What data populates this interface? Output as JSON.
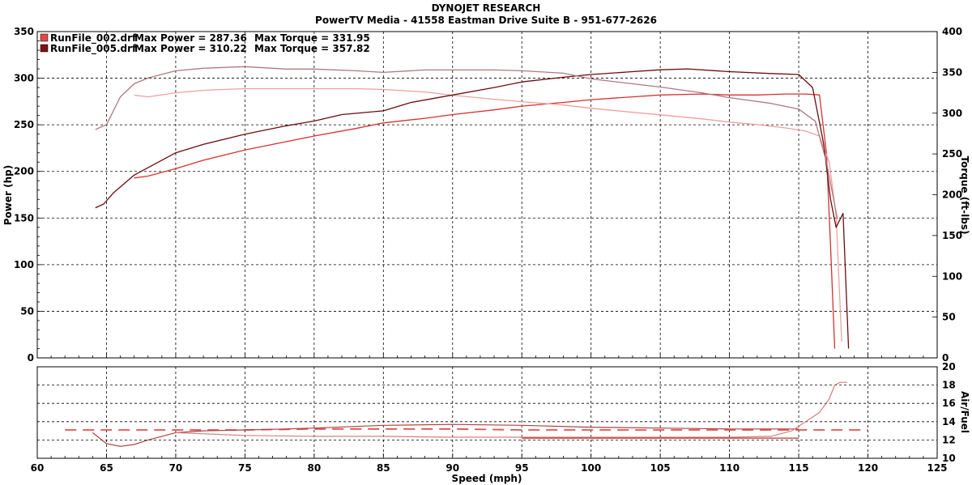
{
  "header": {
    "title": "DYNOJET RESEARCH",
    "subtitle": "PowerTV Media - 41558 Eastman Drive Suite B - 951-677-2626"
  },
  "legend": [
    {
      "file": "RunFile_002.drf",
      "max_power": "Max Power = 287.36",
      "max_torque": "Max Torque = 331.95",
      "color": "#e04848"
    },
    {
      "file": "RunFile_005.drf",
      "max_power": "Max Power = 310.22",
      "max_torque": "Max Torque = 357.82",
      "color": "#7a1418"
    }
  ],
  "chart_data": [
    {
      "type": "line",
      "title": "",
      "xlabel": "Speed (mph)",
      "ylabel": "Power (hp)",
      "y2label": "Torque (ft-lbs)",
      "xlim": [
        60,
        125
      ],
      "ylim": [
        0,
        350
      ],
      "y2lim": [
        0,
        400
      ],
      "xticks": [
        60,
        65,
        70,
        75,
        80,
        85,
        90,
        95,
        100,
        105,
        110,
        115,
        120,
        125
      ],
      "yticks": [
        0,
        50,
        100,
        150,
        200,
        250,
        300,
        350
      ],
      "y2ticks": [
        0,
        50,
        100,
        150,
        200,
        250,
        300,
        350,
        400
      ],
      "grid": true,
      "series": [
        {
          "name": "RunFile_002.drf",
          "measure": "Power (hp)",
          "axis": "left",
          "color": "#d83030",
          "x": [
            67,
            68,
            70,
            72,
            75,
            78,
            80,
            83,
            85,
            88,
            90,
            93,
            95,
            98,
            100,
            103,
            105,
            108,
            110,
            112,
            114,
            115.5,
            116.5,
            117,
            117.3,
            117.6
          ],
          "y": [
            193,
            195,
            203,
            212,
            223,
            232,
            238,
            246,
            252,
            257,
            261,
            266,
            270,
            274,
            277,
            280,
            282,
            283,
            282,
            282,
            283,
            283,
            282,
            220,
            120,
            10
          ]
        },
        {
          "name": "RunFile_002.drf",
          "measure": "Torque (ft-lbs)",
          "axis": "right",
          "color": "#f0a0a0",
          "x": [
            67,
            68,
            70,
            72,
            75,
            78,
            80,
            83,
            85,
            88,
            90,
            93,
            95,
            98,
            100,
            103,
            105,
            108,
            110,
            112,
            114,
            115.5,
            116.5,
            117.2,
            117.7,
            118.1
          ],
          "y": [
            322,
            320,
            325,
            328,
            330,
            330,
            330,
            330,
            329,
            326,
            322,
            317,
            314,
            310,
            306,
            301,
            298,
            293,
            289,
            286,
            282,
            278,
            272,
            240,
            175,
            20
          ]
        },
        {
          "name": "RunFile_005.drf",
          "measure": "Power (hp)",
          "axis": "left",
          "color": "#6a0c10",
          "x": [
            64.2,
            64.8,
            65.5,
            67,
            70,
            72,
            75,
            78,
            80,
            82,
            85,
            87,
            90,
            93,
            95,
            98,
            100,
            103,
            105,
            107,
            110,
            113,
            115,
            116,
            116.8,
            117.3,
            117.7,
            118.2,
            118.6
          ],
          "y": [
            161,
            165,
            177,
            196,
            220,
            229,
            240,
            249,
            254,
            261,
            265,
            274,
            282,
            290,
            296,
            301,
            304,
            307,
            309,
            310,
            307,
            305,
            304,
            290,
            230,
            170,
            140,
            155,
            10
          ]
        },
        {
          "name": "RunFile_005.drf",
          "measure": "Torque (ft-lbs)",
          "axis": "right",
          "color": "#b07880",
          "x": [
            64.2,
            65,
            66,
            67,
            68,
            70,
            72,
            75,
            78,
            80,
            83,
            85,
            88,
            90,
            93,
            95,
            98,
            100,
            103,
            105,
            108,
            110,
            113,
            115,
            116.2,
            117,
            117.8
          ],
          "y": [
            280,
            286,
            320,
            336,
            343,
            352,
            355,
            357,
            354,
            354,
            352,
            350,
            353,
            353,
            353,
            352,
            349,
            342,
            336,
            332,
            325,
            319,
            312,
            305,
            290,
            240,
            170
          ]
        }
      ]
    },
    {
      "type": "line",
      "title": "",
      "xlabel": "Speed (mph)",
      "ylabel": "Air/Fuel",
      "xlim": [
        60,
        125
      ],
      "ylim": [
        10,
        20
      ],
      "yticks": [
        10,
        12,
        14,
        16,
        18,
        20
      ],
      "grid": true,
      "series": [
        {
          "name": "RunFile_002.drf",
          "measure": "Air/Fuel",
          "color": "#e05050",
          "dashed": true,
          "x": [
            62,
            70,
            75,
            80,
            85,
            90,
            95,
            100,
            105,
            110,
            115,
            120
          ],
          "y": [
            13.1,
            13.1,
            13.1,
            13.2,
            13.2,
            13.2,
            13.1,
            13.1,
            13.1,
            13.1,
            13.1,
            13.1
          ]
        },
        {
          "name": "RunFile_005.drf",
          "measure": "Air/Fuel",
          "color": "#b04040",
          "dashed": false,
          "x": [
            64,
            65,
            66,
            67,
            68,
            70,
            72,
            75,
            78,
            80,
            85,
            90,
            95,
            100,
            105,
            110,
            113,
            115
          ],
          "y": [
            12.8,
            11.6,
            11.3,
            11.5,
            12.0,
            12.8,
            13.0,
            13.1,
            13.2,
            13.3,
            13.6,
            13.7,
            13.6,
            13.4,
            13.3,
            13.2,
            13.2,
            13.2
          ]
        },
        {
          "name": "RunFile_005.drf",
          "measure": "Air/Fuel",
          "color": "#d08080",
          "dashed": false,
          "x": [
            70,
            75,
            80,
            85,
            90,
            95,
            100,
            105,
            110,
            113,
            114.5,
            115.5,
            116.5,
            117.2,
            117.6,
            118.0,
            118.5
          ],
          "y": [
            12.8,
            12.5,
            12.4,
            12.4,
            12.3,
            12.3,
            12.3,
            12.3,
            12.3,
            12.4,
            13.0,
            14.0,
            15.0,
            16.5,
            18.0,
            18.3,
            18.3
          ]
        },
        {
          "name": "RunFile_002.drf",
          "measure": "Air/Fuel",
          "color": "#c03030",
          "dashed": false,
          "x": [
            95,
            100,
            105,
            110,
            115
          ],
          "y": [
            12.2,
            12.2,
            12.2,
            12.2,
            12.2
          ]
        }
      ]
    }
  ]
}
